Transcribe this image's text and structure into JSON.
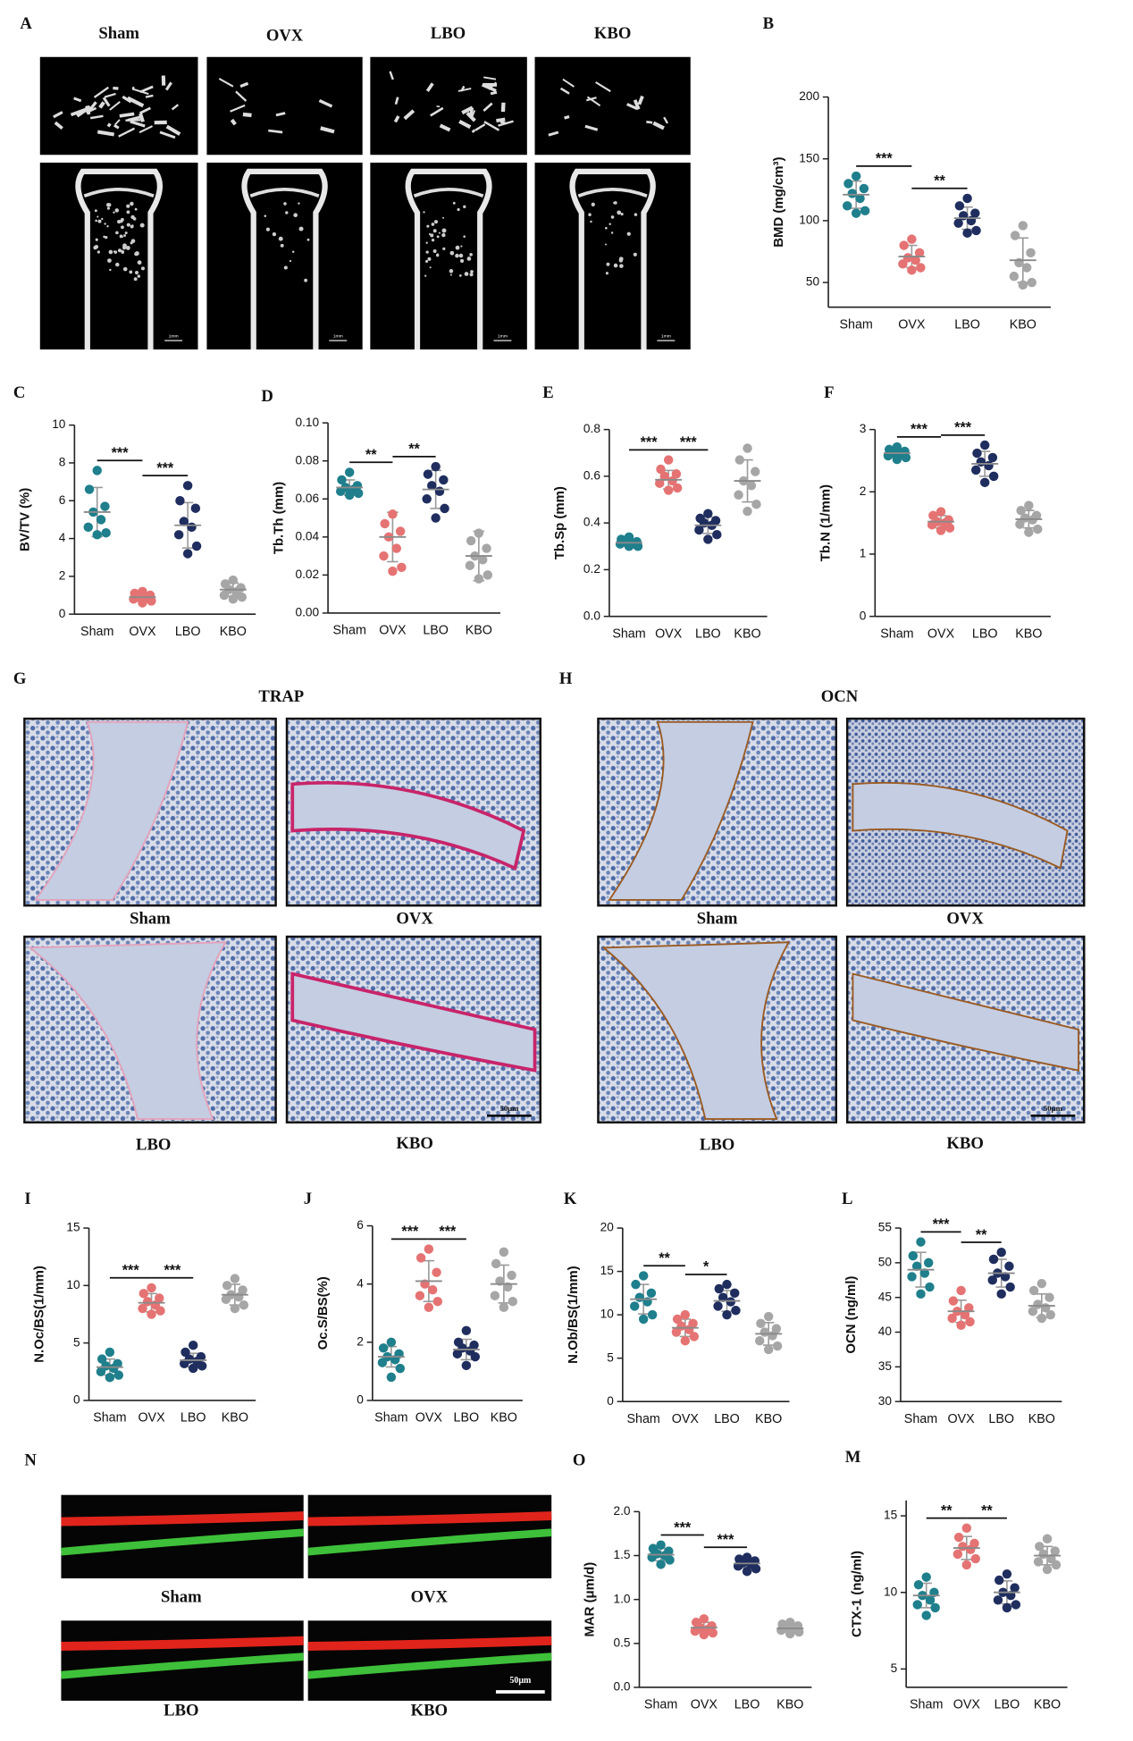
{
  "image_panels": [
    {
      "panel": "A",
      "labels": [
        "Sham",
        "OVX",
        "LBO",
        "KBO"
      ],
      "scale_bar": "1mm"
    },
    {
      "panel": "G",
      "title": "TRAP",
      "labels": [
        "Sham",
        "OVX",
        "LBO",
        "KBO"
      ],
      "scale_bar": "50μm"
    },
    {
      "panel": "H",
      "title": "OCN",
      "labels": [
        "Sham",
        "OVX",
        "LBO",
        "KBO"
      ],
      "scale_bar": "50μm"
    },
    {
      "panel": "N",
      "labels": [
        "Sham",
        "OVX",
        "LBO",
        "KBO"
      ],
      "scale_bar": "50μm"
    }
  ],
  "chart_data": [
    {
      "type": "dot",
      "panel": "B",
      "ylabel": "BMD (mg/cm³)",
      "categories": [
        "Sham",
        "OVX",
        "LBO",
        "KBO"
      ],
      "colors": [
        "#1f7f8c",
        "#e57373",
        "#1f2e5e",
        "#a6a6a6"
      ],
      "ylim": [
        30,
        200
      ],
      "yticks": [
        50,
        100,
        150,
        200
      ],
      "values": [
        [
          136,
          130,
          126,
          122,
          118,
          112,
          108,
          106
        ],
        [
          85,
          80,
          74,
          70,
          68,
          65,
          62,
          60
        ],
        [
          118,
          112,
          106,
          104,
          100,
          98,
          92,
          90
        ],
        [
          96,
          88,
          74,
          66,
          62,
          55,
          50,
          48
        ]
      ],
      "mean": [
        121,
        71,
        102,
        68
      ],
      "sd": [
        11,
        9,
        9,
        18
      ],
      "significance": [
        {
          "text": "***",
          "groups": [
            0,
            1
          ]
        },
        {
          "text": "**",
          "groups": [
            1,
            2
          ]
        }
      ]
    },
    {
      "type": "dot",
      "panel": "C",
      "ylabel": "BV/TV (%)",
      "categories": [
        "Sham",
        "OVX",
        "LBO",
        "KBO"
      ],
      "colors": [
        "#1f7f8c",
        "#e57373",
        "#1f2e5e",
        "#a6a6a6"
      ],
      "ylim": [
        0,
        10
      ],
      "yticks": [
        0,
        2,
        4,
        6,
        8,
        10
      ],
      "values": [
        [
          7.6,
          6.6,
          5.7,
          5.4,
          5.0,
          4.6,
          4.3,
          4.2
        ],
        [
          1.2,
          1.1,
          1.0,
          0.9,
          0.9,
          0.8,
          0.7,
          0.6
        ],
        [
          6.8,
          6.0,
          5.6,
          4.9,
          4.6,
          4.2,
          3.6,
          3.2
        ],
        [
          1.8,
          1.6,
          1.4,
          1.3,
          1.2,
          1.0,
          0.9,
          0.8
        ]
      ],
      "mean": [
        5.4,
        0.9,
        4.7,
        1.3
      ],
      "sd": [
        1.3,
        0.2,
        1.2,
        0.35
      ],
      "significance": [
        {
          "text": "***",
          "groups": [
            0,
            1
          ]
        },
        {
          "text": "***",
          "groups": [
            1,
            2
          ]
        }
      ]
    },
    {
      "type": "dot",
      "panel": "D",
      "ylabel": "Tb.Th (mm)",
      "categories": [
        "Sham",
        "OVX",
        "LBO",
        "KBO"
      ],
      "colors": [
        "#1f7f8c",
        "#e57373",
        "#1f2e5e",
        "#a6a6a6"
      ],
      "ylim": [
        0,
        0.1
      ],
      "yticks": [
        {
          "value": 0,
          "label": "0.00"
        },
        0.02,
        0.04,
        0.06,
        0.08,
        {
          "value": 0.1,
          "label": "0.10"
        }
      ],
      "values": [
        [
          0.074,
          0.07,
          0.067,
          0.066,
          0.065,
          0.064,
          0.063,
          0.062
        ],
        [
          0.052,
          0.047,
          0.043,
          0.04,
          0.034,
          0.03,
          0.024,
          0.022
        ],
        [
          0.077,
          0.073,
          0.07,
          0.067,
          0.064,
          0.06,
          0.055,
          0.05
        ],
        [
          0.042,
          0.038,
          0.034,
          0.03,
          0.028,
          0.025,
          0.02,
          0.018
        ]
      ],
      "mean": [
        0.066,
        0.04,
        0.065,
        0.03
      ],
      "sd": [
        0.004,
        0.013,
        0.01,
        0.013
      ],
      "significance": [
        {
          "text": "**",
          "groups": [
            0,
            1
          ]
        },
        {
          "text": "**",
          "groups": [
            1,
            2
          ]
        }
      ]
    },
    {
      "type": "dot",
      "panel": "E",
      "ylabel": "Tb.Sp (mm)",
      "categories": [
        "Sham",
        "OVX",
        "LBO",
        "KBO"
      ],
      "colors": [
        "#1f7f8c",
        "#e57373",
        "#1f2e5e",
        "#a6a6a6"
      ],
      "ylim": [
        0,
        0.8
      ],
      "yticks": [
        {
          "value": 0,
          "label": "0.0"
        },
        0.2,
        0.4,
        0.6,
        0.8
      ],
      "values": [
        [
          0.34,
          0.33,
          0.32,
          0.32,
          0.31,
          0.31,
          0.3,
          0.3
        ],
        [
          0.67,
          0.63,
          0.61,
          0.6,
          0.58,
          0.57,
          0.55,
          0.54
        ],
        [
          0.44,
          0.42,
          0.41,
          0.4,
          0.39,
          0.37,
          0.35,
          0.33
        ],
        [
          0.72,
          0.67,
          0.62,
          0.58,
          0.56,
          0.52,
          0.48,
          0.45
        ]
      ],
      "mean": [
        0.315,
        0.585,
        0.39,
        0.58
      ],
      "sd": [
        0.015,
        0.04,
        0.035,
        0.09
      ],
      "significance": [
        {
          "text": "***",
          "groups": [
            0,
            1
          ]
        },
        {
          "text": "***",
          "groups": [
            1,
            2
          ]
        }
      ]
    },
    {
      "type": "dot",
      "panel": "F",
      "ylabel": "Tb.N (1/mm)",
      "categories": [
        "Sham",
        "OVX",
        "LBO",
        "KBO"
      ],
      "colors": [
        "#1f7f8c",
        "#e57373",
        "#1f2e5e",
        "#a6a6a6"
      ],
      "ylim": [
        0,
        3
      ],
      "yticks": [
        0,
        1,
        2,
        3
      ],
      "values": [
        [
          2.72,
          2.68,
          2.65,
          2.63,
          2.6,
          2.58,
          2.55,
          2.52
        ],
        [
          1.68,
          1.62,
          1.55,
          1.52,
          1.5,
          1.47,
          1.42,
          1.38
        ],
        [
          2.75,
          2.62,
          2.55,
          2.48,
          2.42,
          2.35,
          2.25,
          2.15
        ],
        [
          1.78,
          1.7,
          1.62,
          1.58,
          1.55,
          1.48,
          1.4,
          1.35
        ]
      ],
      "mean": [
        2.62,
        1.52,
        2.45,
        1.56
      ],
      "sd": [
        0.07,
        0.1,
        0.2,
        0.14
      ],
      "significance": [
        {
          "text": "***",
          "groups": [
            0,
            1
          ]
        },
        {
          "text": "***",
          "groups": [
            1,
            2
          ]
        }
      ]
    },
    {
      "type": "dot",
      "panel": "I",
      "ylabel": "N.Oc/BS(1/mm)",
      "categories": [
        "Sham",
        "OVX",
        "LBO",
        "KBO"
      ],
      "colors": [
        "#1f7f8c",
        "#e57373",
        "#1f2e5e",
        "#a6a6a6"
      ],
      "ylim": [
        0,
        15
      ],
      "yticks": [
        0,
        5,
        10,
        15
      ],
      "values": [
        [
          4.2,
          3.6,
          3.2,
          3.0,
          2.8,
          2.5,
          2.2,
          2.0
        ],
        [
          9.8,
          9.3,
          8.9,
          8.6,
          8.3,
          8.0,
          7.8,
          7.5
        ],
        [
          4.8,
          4.2,
          3.8,
          3.6,
          3.4,
          3.2,
          3.0,
          2.8
        ],
        [
          10.6,
          10.0,
          9.6,
          9.2,
          9.0,
          8.8,
          8.3,
          8.0
        ]
      ],
      "mean": [
        2.9,
        8.5,
        3.5,
        9.2
      ],
      "sd": [
        0.7,
        0.8,
        0.6,
        0.9
      ],
      "significance": [
        {
          "text": "***",
          "groups": [
            0,
            1
          ]
        },
        {
          "text": "***",
          "groups": [
            1,
            2
          ]
        }
      ]
    },
    {
      "type": "dot",
      "panel": "J",
      "ylabel": "Oc.S/BS(%)",
      "categories": [
        "Sham",
        "OVX",
        "LBO",
        "KBO"
      ],
      "colors": [
        "#1f7f8c",
        "#e57373",
        "#1f2e5e",
        "#a6a6a6"
      ],
      "ylim": [
        0,
        6
      ],
      "yticks": [
        0,
        2,
        4,
        6
      ],
      "values": [
        [
          2.0,
          1.8,
          1.6,
          1.5,
          1.4,
          1.3,
          1.1,
          0.8
        ],
        [
          5.2,
          4.9,
          4.4,
          4.0,
          3.8,
          3.6,
          3.4,
          3.2
        ],
        [
          2.4,
          2.0,
          1.9,
          1.8,
          1.7,
          1.6,
          1.5,
          1.2
        ],
        [
          5.1,
          4.7,
          4.3,
          4.1,
          3.9,
          3.6,
          3.4,
          3.2
        ]
      ],
      "mean": [
        1.5,
        4.1,
        1.75,
        4.0
      ],
      "sd": [
        0.35,
        0.7,
        0.35,
        0.65
      ],
      "significance": [
        {
          "text": "***",
          "groups": [
            0,
            1
          ]
        },
        {
          "text": "***",
          "groups": [
            1,
            2
          ]
        }
      ]
    },
    {
      "type": "dot",
      "panel": "K",
      "ylabel": "N.Ob/BS(1/mm)",
      "categories": [
        "Sham",
        "OVX",
        "LBO",
        "KBO"
      ],
      "colors": [
        "#1f7f8c",
        "#e57373",
        "#1f2e5e",
        "#a6a6a6"
      ],
      "ylim": [
        0,
        20
      ],
      "yticks": [
        0,
        5,
        10,
        15,
        20
      ],
      "values": [
        [
          14.5,
          13.5,
          12.5,
          12,
          11.5,
          11,
          10,
          9.5
        ],
        [
          10,
          9.5,
          9,
          8.7,
          8.3,
          8,
          7.5,
          7
        ],
        [
          13.5,
          13,
          12.5,
          12,
          11.5,
          11,
          10.5,
          10
        ],
        [
          9.8,
          9,
          8.4,
          8,
          7.6,
          7,
          6.4,
          6
        ]
      ],
      "mean": [
        11.8,
        8.5,
        11.6,
        7.8
      ],
      "sd": [
        1.7,
        1,
        1.2,
        1.3
      ],
      "significance": [
        {
          "text": "**",
          "groups": [
            0,
            1
          ]
        },
        {
          "text": "*",
          "groups": [
            1,
            2
          ]
        }
      ]
    },
    {
      "type": "dot",
      "panel": "L",
      "ylabel": "OCN (ng/ml)",
      "categories": [
        "Sham",
        "OVX",
        "LBO",
        "KBO"
      ],
      "colors": [
        "#1f7f8c",
        "#e57373",
        "#1f2e5e",
        "#a6a6a6"
      ],
      "ylim": [
        30,
        55
      ],
      "yticks": [
        30,
        35,
        40,
        45,
        50,
        55
      ],
      "values": [
        [
          53,
          51,
          50,
          49.5,
          48.5,
          48,
          46.5,
          45.5
        ],
        [
          46,
          44.5,
          43.5,
          43,
          42.5,
          42,
          41.5,
          41
        ],
        [
          51.5,
          50.5,
          49.5,
          48.5,
          48,
          47.5,
          46.5,
          45.5
        ],
        [
          47,
          46,
          45,
          44,
          43.5,
          43,
          42.5,
          42
        ]
      ],
      "mean": [
        49,
        43,
        48.5,
        43.8
      ],
      "sd": [
        2.5,
        1.6,
        2,
        1.7
      ],
      "significance": [
        {
          "text": "***",
          "groups": [
            0,
            1
          ]
        },
        {
          "text": "**",
          "groups": [
            1,
            2
          ]
        }
      ]
    },
    {
      "type": "dot",
      "panel": "O",
      "ylabel": "MAR (μm/d)",
      "categories": [
        "Sham",
        "OVX",
        "LBO",
        "KBO"
      ],
      "colors": [
        "#1f7f8c",
        "#e57373",
        "#1f2e5e",
        "#a6a6a6"
      ],
      "ylim": [
        0,
        2
      ],
      "yticks": [
        {
          "value": 0,
          "label": "0.0"
        },
        0.5,
        {
          "value": 1,
          "label": "1.0"
        },
        1.5,
        {
          "value": 2,
          "label": "2.0"
        }
      ],
      "values": [
        [
          1.62,
          1.58,
          1.55,
          1.52,
          1.5,
          1.48,
          1.45,
          1.4
        ],
        [
          0.78,
          0.74,
          0.7,
          0.68,
          0.66,
          0.64,
          0.62,
          0.6
        ],
        [
          1.48,
          1.46,
          1.44,
          1.42,
          1.4,
          1.38,
          1.35,
          1.32
        ],
        [
          0.74,
          0.72,
          0.7,
          0.68,
          0.66,
          0.65,
          0.63,
          0.61
        ]
      ],
      "mean": [
        1.51,
        0.68,
        1.41,
        0.67
      ],
      "sd": [
        0.07,
        0.06,
        0.05,
        0.04
      ],
      "significance": [
        {
          "text": "***",
          "groups": [
            0,
            1
          ]
        },
        {
          "text": "***",
          "groups": [
            1,
            2
          ]
        }
      ]
    },
    {
      "type": "dot",
      "panel": "M",
      "ylabel": "CTX-1 (ng/ml)",
      "categories": [
        "Sham",
        "OVX",
        "LBO",
        "KBO"
      ],
      "colors": [
        "#1f7f8c",
        "#e57373",
        "#1f2e5e",
        "#a6a6a6"
      ],
      "ylim": [
        3.8,
        16
      ],
      "yticks": [
        5,
        10,
        15
      ],
      "values": [
        [
          11,
          10.5,
          10,
          9.8,
          9.5,
          9.2,
          9,
          8.5
        ],
        [
          14.2,
          13.6,
          13.2,
          13,
          12.8,
          12.5,
          12.2,
          11.8
        ],
        [
          11.2,
          10.8,
          10.3,
          10,
          9.8,
          9.5,
          9.2,
          9
        ],
        [
          13.5,
          13,
          12.7,
          12.5,
          12.2,
          12,
          11.8,
          11.5
        ]
      ],
      "mean": [
        9.8,
        12.9,
        10,
        12.4
      ],
      "sd": [
        0.8,
        0.75,
        0.75,
        0.6
      ],
      "significance": [
        {
          "text": "**",
          "groups": [
            0,
            1
          ]
        },
        {
          "text": "**",
          "groups": [
            1,
            2
          ]
        }
      ]
    }
  ]
}
